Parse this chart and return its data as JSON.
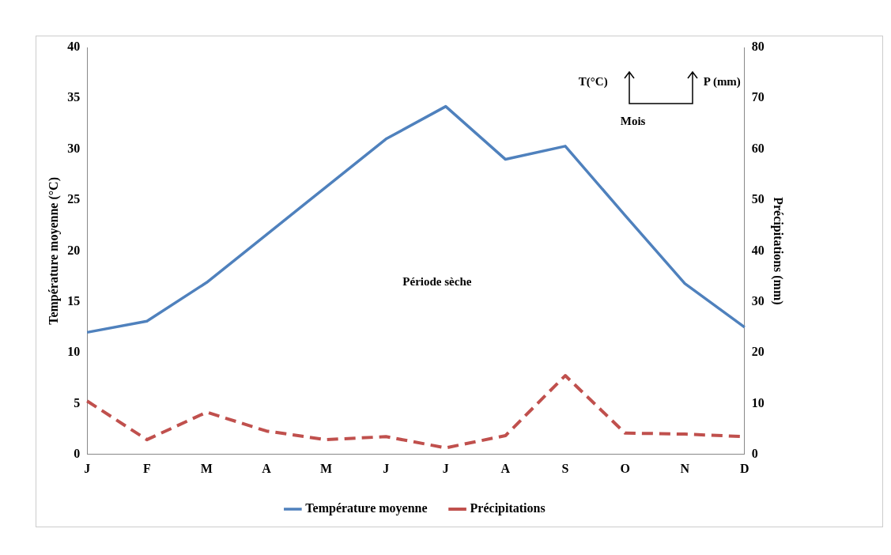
{
  "chart_data": {
    "type": "line",
    "categories": [
      "J",
      "F",
      "M",
      "A",
      "M",
      "J",
      "J",
      "A",
      "S",
      "O",
      "N",
      "D"
    ],
    "ylabel": "Température moyenne (°C)",
    "y2label": "Précipitations (mm)",
    "series": [
      {
        "name": "Température moyenne",
        "color": "#4f81bd",
        "line_style": "solid",
        "values": [
          12.0,
          13.1,
          16.9,
          21.6,
          26.3,
          31.0,
          34.2,
          29.0,
          30.3,
          23.5,
          16.8,
          12.5
        ]
      },
      {
        "name": "Précipitations",
        "color": "#c0504d",
        "line_style": "dashed",
        "axis": "y2",
        "values": [
          10.5,
          2.9,
          8.3,
          4.6,
          2.9,
          3.5,
          1.3,
          3.7,
          15.5,
          4.2,
          4.0,
          3.5
        ]
      }
    ],
    "ylim": [
      0,
      40
    ],
    "yticks": [
      0,
      5,
      10,
      15,
      20,
      25,
      30,
      35,
      40
    ],
    "y2lim": [
      0,
      80
    ],
    "y2ticks": [
      0,
      10,
      20,
      30,
      40,
      50,
      60,
      70,
      80
    ],
    "annotations": [
      "Période sèche",
      "T(°C)",
      "P (mm)",
      "Mois"
    ],
    "legend": "bottom",
    "grid": false,
    "marker": "none"
  }
}
